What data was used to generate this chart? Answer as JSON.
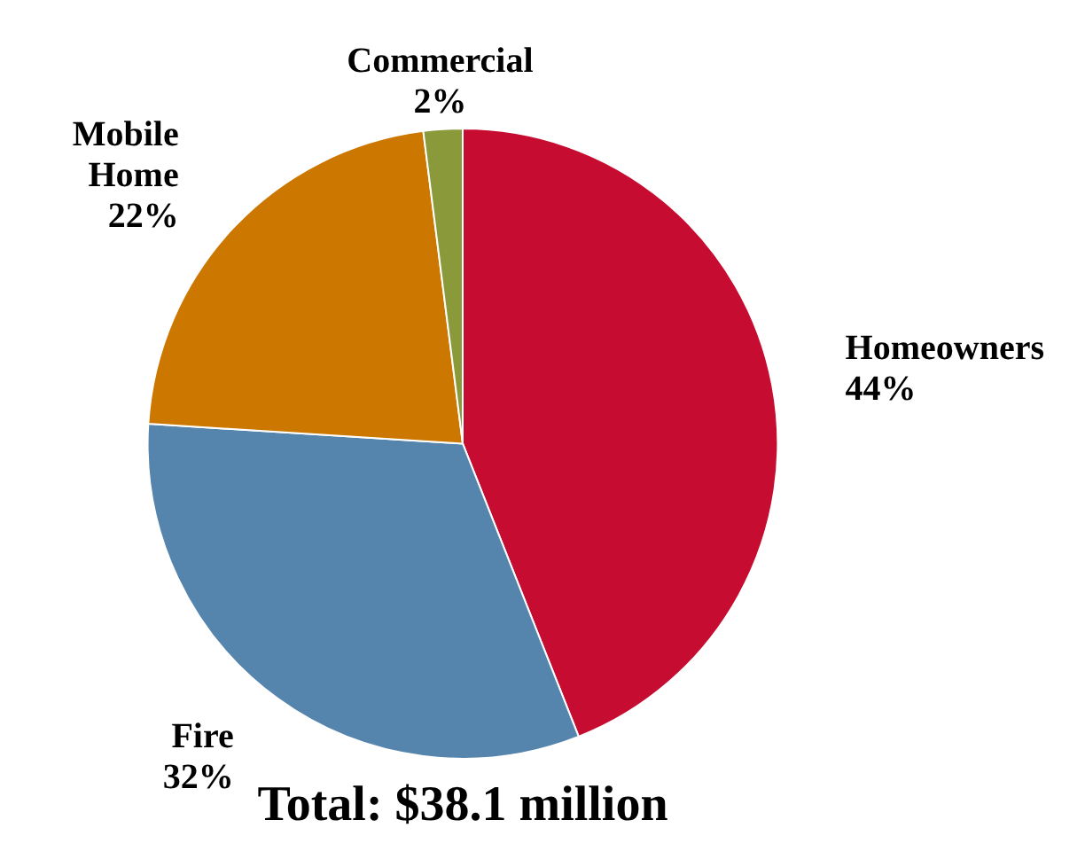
{
  "chart_data": {
    "type": "pie",
    "title": "Total: $38.1 million",
    "categories": [
      "Homeowners",
      "Fire",
      "Mobile Home",
      "Commercial"
    ],
    "values": [
      44,
      32,
      22,
      2
    ],
    "colors": [
      "#c60c30",
      "#5584ad",
      "#cc7700",
      "#8a9a3b"
    ],
    "value_labels": [
      "44%",
      "32%",
      "22%",
      "2%"
    ],
    "legend": false
  }
}
